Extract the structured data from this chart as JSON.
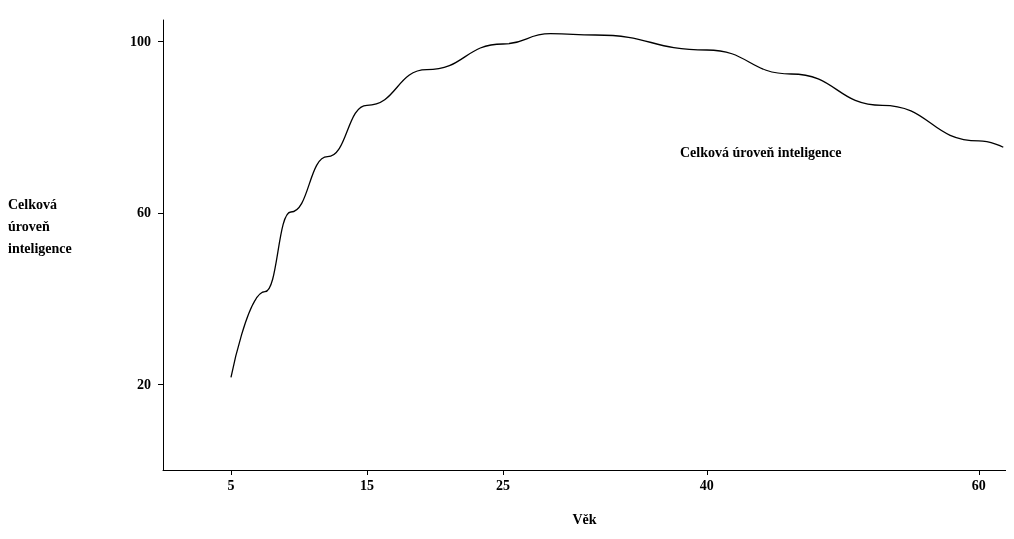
{
  "chart_data": {
    "type": "line",
    "xlabel": "Věk",
    "ylabel": "Celková\núroveň\ninteligence",
    "x": [
      5,
      7.5,
      9.4,
      12.1,
      15,
      19.4,
      25,
      28.5,
      31.8,
      40,
      46.2,
      52.9,
      60,
      61.8
    ],
    "series": [
      {
        "color": "#000000",
        "values": [
          21.6,
          41.6,
          60.2,
          73.1,
          85.1,
          93.4,
          99.4,
          101.8,
          101.5,
          98,
          92.4,
          85.1,
          76.8,
          75.3
        ]
      }
    ],
    "xlim": [
      0,
      62
    ],
    "xticks": [
      5,
      15,
      25,
      40,
      60
    ],
    "ylim": [
      0,
      105
    ],
    "yticks": [
      20,
      60,
      100
    ],
    "annotations": [
      "Celková úroveň inteligence"
    ],
    "grid": false,
    "marker": "none",
    "line_style": "solid"
  }
}
